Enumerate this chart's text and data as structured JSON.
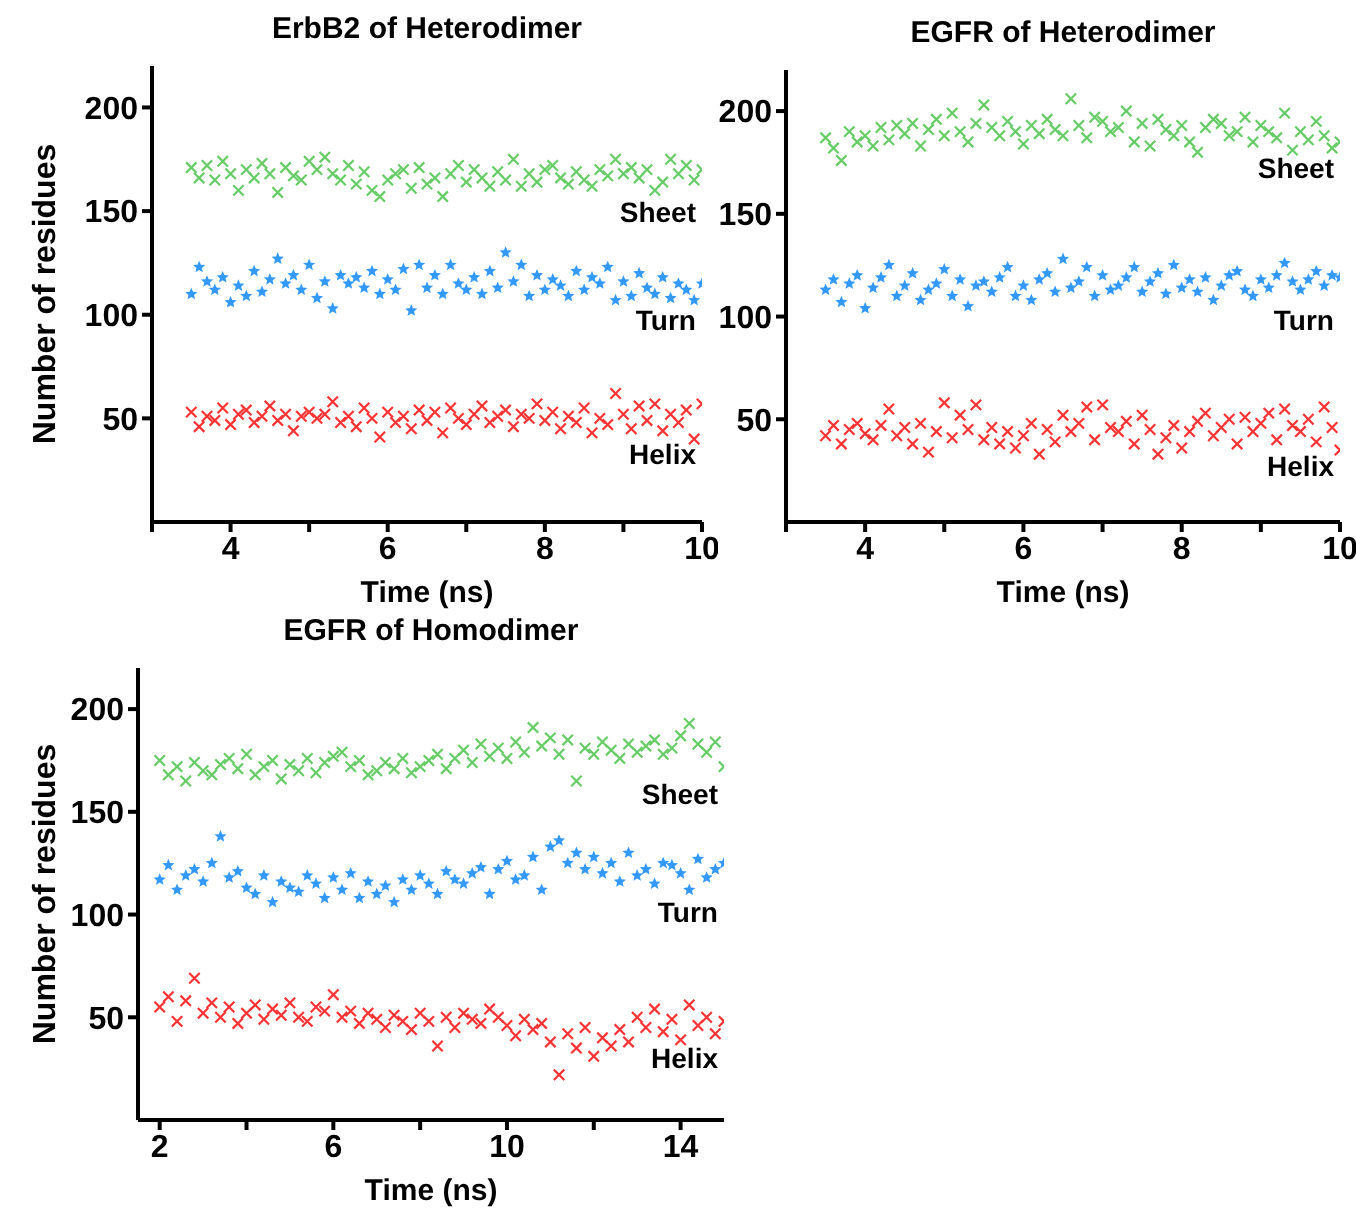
{
  "chart_data": [
    {
      "type": "scatter",
      "title": "ErbB2 of Heterodimer",
      "xlabel": "Time (ns)",
      "ylabel": "Number of residues",
      "xlim": [
        3,
        10
      ],
      "ylim": [
        0,
        220
      ],
      "xticks": [
        {
          "value": 3,
          "label": null
        },
        4,
        {
          "value": 5,
          "label": null
        },
        6,
        {
          "value": 7,
          "label": null
        },
        8,
        {
          "value": 9,
          "label": null
        },
        10
      ],
      "yticks": [
        50,
        100,
        150,
        200
      ],
      "x": [
        3.5,
        3.6,
        3.7,
        3.8,
        3.9,
        4.0,
        4.1,
        4.2,
        4.3,
        4.4,
        4.5,
        4.6,
        4.7,
        4.8,
        4.9,
        5.0,
        5.1,
        5.2,
        5.3,
        5.4,
        5.5,
        5.6,
        5.7,
        5.8,
        5.9,
        6.0,
        6.1,
        6.2,
        6.3,
        6.4,
        6.5,
        6.6,
        6.7,
        6.8,
        6.9,
        7.0,
        7.1,
        7.2,
        7.3,
        7.4,
        7.5,
        7.6,
        7.7,
        7.8,
        7.9,
        8.0,
        8.1,
        8.2,
        8.3,
        8.4,
        8.5,
        8.6,
        8.7,
        8.8,
        8.9,
        9.0,
        9.1,
        9.2,
        9.3,
        9.4,
        9.5,
        9.6,
        9.7,
        9.8,
        9.9,
        10.0
      ],
      "series": [
        {
          "name": "Sheet",
          "color": "#66cc66",
          "marker": "cross",
          "values": [
            171,
            166,
            172,
            165,
            174,
            168,
            160,
            170,
            166,
            173,
            168,
            159,
            171,
            167,
            165,
            174,
            170,
            176,
            168,
            165,
            172,
            163,
            169,
            160,
            157,
            165,
            168,
            170,
            161,
            171,
            163,
            166,
            157,
            168,
            172,
            164,
            170,
            166,
            162,
            169,
            165,
            175,
            162,
            168,
            164,
            170,
            172,
            166,
            163,
            169,
            165,
            162,
            170,
            167,
            175,
            168,
            171,
            166,
            170,
            160,
            164,
            175,
            168,
            172,
            165,
            170
          ]
        },
        {
          "name": "Turn",
          "color": "#3399ff",
          "marker": "star",
          "values": [
            110,
            123,
            116,
            112,
            118,
            106,
            114,
            109,
            121,
            111,
            117,
            127,
            115,
            119,
            112,
            124,
            108,
            116,
            103,
            119,
            115,
            118,
            113,
            121,
            110,
            117,
            112,
            122,
            102,
            124,
            113,
            119,
            110,
            124,
            115,
            112,
            118,
            110,
            121,
            113,
            130,
            116,
            124,
            109,
            119,
            112,
            117,
            114,
            109,
            121,
            112,
            118,
            115,
            123,
            107,
            116,
            109,
            120,
            113,
            110,
            118,
            108,
            115,
            112,
            107,
            115
          ]
        },
        {
          "name": "Helix",
          "color": "#ff3333",
          "marker": "cross",
          "values": [
            53,
            46,
            51,
            49,
            55,
            47,
            52,
            54,
            48,
            51,
            56,
            49,
            52,
            44,
            51,
            53,
            50,
            52,
            58,
            48,
            51,
            46,
            55,
            50,
            41,
            53,
            48,
            51,
            45,
            54,
            49,
            53,
            43,
            55,
            50,
            47,
            52,
            56,
            48,
            51,
            54,
            46,
            52,
            50,
            57,
            49,
            53,
            45,
            51,
            48,
            55,
            43,
            50,
            47,
            62,
            52,
            45,
            56,
            49,
            57,
            44,
            52,
            48,
            54,
            40,
            57
          ]
        }
      ]
    },
    {
      "type": "scatter",
      "title": "EGFR of Heterodimer",
      "xlabel": "Time (ns)",
      "xlim": [
        3,
        10
      ],
      "ylim": [
        0,
        220
      ],
      "xticks": [
        {
          "value": 3,
          "label": null
        },
        4,
        {
          "value": 5,
          "label": null
        },
        6,
        {
          "value": 7,
          "label": null
        },
        8,
        {
          "value": 9,
          "label": null
        },
        10
      ],
      "yticks": [
        50,
        100,
        150,
        200
      ],
      "x": [
        3.5,
        3.6,
        3.7,
        3.8,
        3.9,
        4.0,
        4.1,
        4.2,
        4.3,
        4.4,
        4.5,
        4.6,
        4.7,
        4.8,
        4.9,
        5.0,
        5.1,
        5.2,
        5.3,
        5.4,
        5.5,
        5.6,
        5.7,
        5.8,
        5.9,
        6.0,
        6.1,
        6.2,
        6.3,
        6.4,
        6.5,
        6.6,
        6.7,
        6.8,
        6.9,
        7.0,
        7.1,
        7.2,
        7.3,
        7.4,
        7.5,
        7.6,
        7.7,
        7.8,
        7.9,
        8.0,
        8.1,
        8.2,
        8.3,
        8.4,
        8.5,
        8.6,
        8.7,
        8.8,
        8.9,
        9.0,
        9.1,
        9.2,
        9.3,
        9.4,
        9.5,
        9.6,
        9.7,
        9.8,
        9.9,
        10.0
      ],
      "series": [
        {
          "name": "Sheet",
          "color": "#66cc66",
          "marker": "cross",
          "values": [
            187,
            182,
            176,
            190,
            185,
            188,
            183,
            192,
            186,
            193,
            189,
            194,
            183,
            191,
            196,
            188,
            199,
            190,
            185,
            194,
            203,
            192,
            188,
            195,
            190,
            184,
            193,
            189,
            196,
            191,
            188,
            206,
            193,
            187,
            197,
            195,
            190,
            192,
            200,
            185,
            194,
            183,
            196,
            191,
            188,
            193,
            185,
            180,
            192,
            196,
            194,
            188,
            190,
            197,
            185,
            193,
            190,
            187,
            199,
            181,
            190,
            186,
            195,
            188,
            182,
            185
          ]
        },
        {
          "name": "Turn",
          "color": "#3399ff",
          "marker": "star",
          "values": [
            113,
            118,
            107,
            116,
            120,
            104,
            114,
            119,
            125,
            110,
            115,
            121,
            108,
            113,
            116,
            123,
            110,
            118,
            105,
            115,
            117,
            112,
            119,
            124,
            110,
            115,
            108,
            118,
            121,
            112,
            128,
            114,
            117,
            124,
            110,
            120,
            113,
            115,
            119,
            124,
            112,
            117,
            121,
            111,
            125,
            114,
            118,
            112,
            119,
            108,
            115,
            120,
            122,
            113,
            110,
            118,
            114,
            120,
            126,
            117,
            113,
            118,
            122,
            115,
            120,
            119
          ]
        },
        {
          "name": "Helix",
          "color": "#ff3333",
          "marker": "cross",
          "values": [
            42,
            47,
            38,
            45,
            48,
            43,
            40,
            47,
            55,
            42,
            46,
            38,
            48,
            34,
            44,
            58,
            41,
            52,
            45,
            57,
            40,
            46,
            38,
            44,
            36,
            42,
            48,
            33,
            45,
            39,
            52,
            44,
            48,
            56,
            40,
            57,
            46,
            44,
            49,
            38,
            52,
            45,
            33,
            41,
            47,
            36,
            44,
            49,
            53,
            42,
            46,
            50,
            38,
            51,
            44,
            48,
            53,
            40,
            55,
            47,
            44,
            50,
            39,
            56,
            46,
            35
          ]
        }
      ]
    },
    {
      "type": "scatter",
      "title": "EGFR of Homodimer",
      "xlabel": "Time (ns)",
      "ylabel": "Number of residues",
      "xlim": [
        1.5,
        15
      ],
      "ylim": [
        0,
        220
      ],
      "xticks": [
        2,
        {
          "value": 4,
          "label": null
        },
        6,
        {
          "value": 8,
          "label": null
        },
        10,
        {
          "value": 12,
          "label": null
        },
        14
      ],
      "yticks": [
        50,
        100,
        150,
        200
      ],
      "x": [
        2.0,
        2.2,
        2.4,
        2.6,
        2.8,
        3.0,
        3.2,
        3.4,
        3.6,
        3.8,
        4.0,
        4.2,
        4.4,
        4.6,
        4.8,
        5.0,
        5.2,
        5.4,
        5.6,
        5.8,
        6.0,
        6.2,
        6.4,
        6.6,
        6.8,
        7.0,
        7.2,
        7.4,
        7.6,
        7.8,
        8.0,
        8.2,
        8.4,
        8.6,
        8.8,
        9.0,
        9.2,
        9.4,
        9.6,
        9.8,
        10.0,
        10.2,
        10.4,
        10.6,
        10.8,
        11.0,
        11.2,
        11.4,
        11.6,
        11.8,
        12.0,
        12.2,
        12.4,
        12.6,
        12.8,
        13.0,
        13.2,
        13.4,
        13.6,
        13.8,
        14.0,
        14.2,
        14.4,
        14.6,
        14.8,
        15.0
      ],
      "series": [
        {
          "name": "Sheet",
          "color": "#66cc66",
          "marker": "cross",
          "values": [
            175,
            168,
            172,
            165,
            174,
            170,
            168,
            173,
            176,
            171,
            178,
            168,
            172,
            175,
            166,
            173,
            170,
            176,
            169,
            174,
            177,
            179,
            172,
            175,
            168,
            170,
            174,
            171,
            176,
            169,
            172,
            175,
            178,
            171,
            176,
            180,
            174,
            183,
            177,
            181,
            176,
            184,
            179,
            191,
            182,
            186,
            178,
            185,
            165,
            181,
            178,
            184,
            180,
            176,
            183,
            179,
            182,
            185,
            178,
            181,
            187,
            193,
            183,
            179,
            184,
            172
          ]
        },
        {
          "name": "Turn",
          "color": "#3399ff",
          "marker": "star",
          "values": [
            117,
            124,
            112,
            119,
            122,
            116,
            125,
            138,
            118,
            121,
            113,
            110,
            119,
            106,
            116,
            113,
            111,
            119,
            115,
            108,
            118,
            112,
            120,
            108,
            116,
            110,
            114,
            106,
            117,
            112,
            119,
            115,
            110,
            121,
            117,
            115,
            120,
            123,
            110,
            122,
            126,
            117,
            119,
            128,
            112,
            133,
            136,
            125,
            130,
            122,
            128,
            120,
            125,
            116,
            130,
            119,
            122,
            115,
            125,
            124,
            120,
            112,
            127,
            118,
            122,
            125
          ]
        },
        {
          "name": "Helix",
          "color": "#ff3333",
          "marker": "cross",
          "values": [
            55,
            60,
            48,
            58,
            69,
            52,
            57,
            50,
            55,
            47,
            52,
            56,
            49,
            54,
            51,
            57,
            50,
            48,
            55,
            53,
            61,
            50,
            53,
            47,
            52,
            49,
            45,
            51,
            48,
            44,
            52,
            48,
            36,
            50,
            45,
            52,
            49,
            47,
            54,
            50,
            46,
            41,
            49,
            44,
            47,
            38,
            22,
            42,
            35,
            45,
            31,
            40,
            36,
            44,
            38,
            50,
            45,
            54,
            43,
            49,
            39,
            56,
            46,
            50,
            42,
            48
          ]
        }
      ]
    }
  ]
}
